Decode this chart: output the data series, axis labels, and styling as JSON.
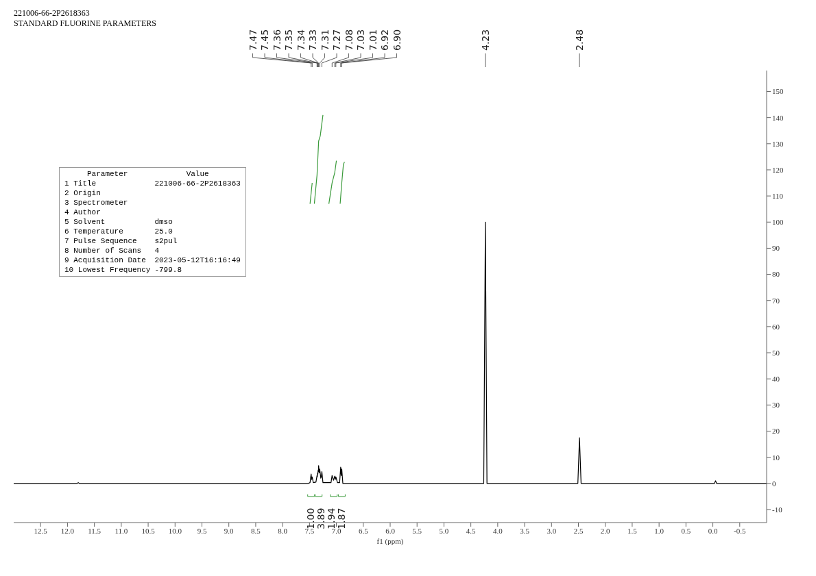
{
  "chart_data": {
    "type": "line",
    "title": "221006-66-2P2618363",
    "subtitle": "STANDARD FLUORINE PARAMETERS",
    "xlabel": "f1 (ppm)",
    "xlim": [
      13,
      -1
    ],
    "xticks": [
      12.5,
      {
        "value": 12,
        "label": "12.0"
      },
      11.5,
      {
        "value": 11,
        "label": "11.0"
      },
      10.5,
      {
        "value": 10,
        "label": "10.0"
      },
      9.5,
      {
        "value": 9,
        "label": "9.0"
      },
      8.5,
      {
        "value": 8,
        "label": "8.0"
      },
      7.5,
      {
        "value": 7,
        "label": "7.0"
      },
      6.5,
      {
        "value": 6,
        "label": "6.0"
      },
      5.5,
      {
        "value": 5,
        "label": "5.0"
      },
      4.5,
      {
        "value": 4,
        "label": "4.0"
      },
      3.5,
      {
        "value": 3,
        "label": "3.0"
      },
      2.5,
      {
        "value": 2,
        "label": "2.0"
      },
      1.5,
      {
        "value": 1,
        "label": "1.0"
      },
      0.5,
      {
        "value": 0,
        "label": "0.0"
      },
      -0.5
    ],
    "ylim": [
      -15,
      158
    ],
    "yticks": [
      -10,
      0,
      10,
      20,
      30,
      40,
      50,
      60,
      70,
      80,
      90,
      100,
      110,
      120,
      130,
      140,
      150
    ],
    "marker": "none",
    "series": [
      {
        "color": "#000000",
        "x": [
          13,
          11.82,
          11.8,
          11.78,
          7.52,
          7.49,
          7.47,
          7.46,
          7.45,
          7.43,
          7.38,
          7.36,
          7.355,
          7.35,
          7.345,
          7.34,
          7.335,
          7.33,
          7.32,
          7.31,
          7.29,
          7.28,
          7.27,
          7.25,
          7.1,
          7.08,
          7.055,
          7.03,
          7.02,
          7.01,
          6.98,
          6.94,
          6.92,
          6.91,
          6.9,
          6.88,
          4.26,
          4.23,
          4.2,
          2.51,
          2.48,
          2.45,
          -0.03,
          -0.05,
          -0.07,
          -1
        ],
        "values": [
          0,
          0,
          0.3,
          0,
          0,
          0.3,
          3.6,
          1.5,
          2.5,
          0.3,
          0.5,
          3,
          2.5,
          4,
          3.5,
          5,
          4.5,
          6.8,
          4,
          5.5,
          2,
          2.5,
          4.5,
          0.3,
          0.3,
          3,
          1.2,
          2.8,
          1.5,
          2.5,
          0.3,
          0.3,
          6.2,
          3,
          5.5,
          0,
          0,
          100,
          0,
          0,
          17.5,
          0,
          0,
          1,
          0,
          0
        ]
      },
      {
        "type": "line",
        "color": "#3a9a3a",
        "x": [
          7.49,
          7.47,
          7.45
        ],
        "values": [
          107,
          111,
          115
        ]
      },
      {
        "type": "line",
        "color": "#3a9a3a",
        "x": [
          7.41,
          7.36,
          7.33,
          7.3,
          7.25
        ],
        "values": [
          107,
          118,
          131,
          133,
          141
        ]
      },
      {
        "type": "line",
        "color": "#3a9a3a",
        "x": [
          7.14,
          7.08,
          7.03,
          7.0
        ],
        "values": [
          107,
          115,
          119,
          123.5
        ]
      },
      {
        "type": "line",
        "color": "#3a9a3a",
        "x": [
          6.93,
          6.9,
          6.87,
          6.85
        ],
        "values": [
          107,
          115,
          122,
          123
        ]
      }
    ],
    "annotations": [
      "Parameter\tValue",
      "1 Title\t221006-66-2P2618363",
      "2 Origin\t",
      "3 Spectrometer\t",
      "4 Author\t",
      "5 Solvent\tdmso",
      "6 Temperature\t25.0",
      "7 Pulse Sequence\ts2pul",
      "8 Number of Scans\t4",
      "9 Acquisition Date\t2023-05-12T16:16:49",
      "10 Lowest Frequency\t-799.8",
      {
        "text": "7.47",
        "x": 7.47
      },
      {
        "text": "7.45",
        "x": 7.45
      },
      {
        "text": "7.36",
        "x": 7.36
      },
      {
        "text": "7.35",
        "x": 7.35
      },
      {
        "text": "7.34",
        "x": 7.34
      },
      {
        "text": "7.33",
        "x": 7.33
      },
      {
        "text": "7.31",
        "x": 7.31
      },
      {
        "text": "7.27",
        "x": 7.27
      },
      {
        "text": "7.08",
        "x": 7.08
      },
      {
        "text": "7.03",
        "x": 7.03
      },
      {
        "text": "7.01",
        "x": 7.01
      },
      {
        "text": "6.92",
        "x": 6.92
      },
      {
        "text": "6.90",
        "x": 6.9
      },
      {
        "text": "4.23",
        "x": 4.23
      },
      {
        "text": "2.48",
        "x": 2.48
      },
      {
        "text": "1.00",
        "x": 7.47,
        "y": -5
      },
      {
        "text": "3.89",
        "x": 7.33,
        "y": -5
      },
      {
        "text": "1.94",
        "x": 7.05,
        "y": -5
      },
      {
        "text": "1.87",
        "x": 6.9,
        "y": -5
      }
    ]
  }
}
